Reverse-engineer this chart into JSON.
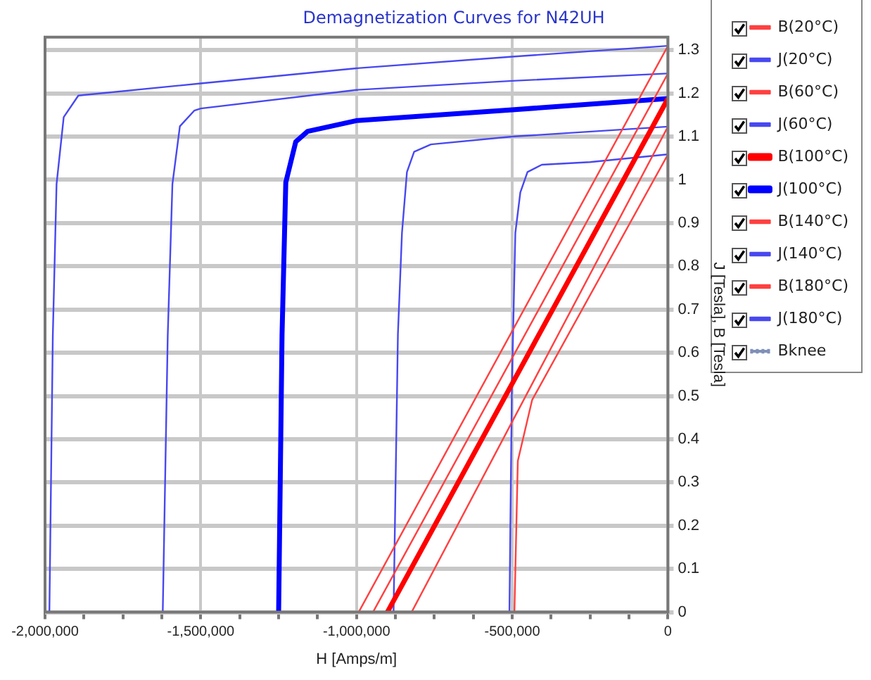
{
  "chart_data": {
    "type": "line",
    "title": "Demagnetization Curves for N42UH",
    "xlabel": "H [Amps/m]",
    "ylabel": "J [Tesla], B [Tesla]",
    "xlim": [
      -2000000,
      0
    ],
    "ylim": [
      0,
      1.33
    ],
    "xticks": [
      {
        "value": -2000000,
        "label": "-2,000,000"
      },
      {
        "value": -1875000,
        "label": null
      },
      {
        "value": -1750000,
        "label": null
      },
      {
        "value": -1625000,
        "label": null
      },
      {
        "value": -1500000,
        "label": "-1,500,000"
      },
      {
        "value": -1375000,
        "label": null
      },
      {
        "value": -1250000,
        "label": null
      },
      {
        "value": -1125000,
        "label": null
      },
      {
        "value": -1000000,
        "label": "-1,000,000"
      },
      {
        "value": -875000,
        "label": null
      },
      {
        "value": -750000,
        "label": null
      },
      {
        "value": -625000,
        "label": null
      },
      {
        "value": -500000,
        "label": "-500,000"
      },
      {
        "value": -375000,
        "label": null
      },
      {
        "value": -250000,
        "label": null
      },
      {
        "value": -125000,
        "label": null
      },
      {
        "value": 0,
        "label": "0"
      }
    ],
    "yticks": [
      0,
      0.1,
      0.2,
      0.3,
      0.4,
      0.5,
      0.6,
      0.7,
      0.8,
      0.9,
      1,
      1.1,
      1.2,
      1.3
    ],
    "grid": true,
    "legend": "right",
    "marker": "none",
    "series": [
      {
        "name": "B(20°C)",
        "color": "#ff4040",
        "x": [
          -993000,
          0
        ],
        "values": [
          0,
          1.31
        ]
      },
      {
        "name": "J(20°C)",
        "color": "#4848f0",
        "x": [
          -1986000,
          -1975000,
          -1963000,
          -1940000,
          -1893000,
          -1500000,
          -1000000,
          -500000,
          0
        ],
        "values": [
          0,
          0.64,
          0.99,
          1.145,
          1.195,
          1.223,
          1.258,
          1.285,
          1.31
        ]
      },
      {
        "name": "B(60°C)",
        "color": "#ff4040",
        "x": [
          -947000,
          0
        ],
        "values": [
          0,
          1.246
        ]
      },
      {
        "name": "J(60°C)",
        "color": "#4848f0",
        "x": [
          -1622000,
          -1606000,
          -1591000,
          -1567000,
          -1521000,
          -1500000,
          -1000000,
          -500000,
          0
        ],
        "values": [
          0,
          0.64,
          0.99,
          1.124,
          1.16,
          1.165,
          1.208,
          1.229,
          1.246
        ]
      },
      {
        "name": "B(100°C)",
        "color": "#ff0000",
        "x": [
          -901000,
          0
        ],
        "values": [
          0,
          1.188
        ]
      },
      {
        "name": "J(100°C)",
        "color": "#0000ff",
        "x": [
          -1250000,
          -1239000,
          -1227000,
          -1195000,
          -1157000,
          -1000000,
          -500000,
          0
        ],
        "values": [
          0,
          0.643,
          0.994,
          1.088,
          1.112,
          1.137,
          1.162,
          1.188
        ]
      },
      {
        "name": "B(140°C)",
        "color": "#ff4040",
        "x": [
          -823000,
          0
        ],
        "values": [
          0,
          1.123
        ]
      },
      {
        "name": "J(140°C)",
        "color": "#4848f0",
        "x": [
          -881000,
          -867000,
          -854000,
          -838000,
          -815000,
          -761000,
          -500000,
          0
        ],
        "values": [
          0,
          0.643,
          0.877,
          1.018,
          1.065,
          1.082,
          1.1,
          1.123
        ]
      },
      {
        "name": "B(180°C)",
        "color": "#ff4040",
        "x": [
          -493000,
          -482000,
          -436000,
          0
        ],
        "values": [
          0,
          0.35,
          0.491,
          1.059
        ]
      },
      {
        "name": "J(180°C)",
        "color": "#4848f0",
        "x": [
          -509000,
          -501000,
          -490000,
          -474000,
          -451000,
          -405000,
          -250000,
          0
        ],
        "values": [
          0,
          0.526,
          0.877,
          0.971,
          1.018,
          1.035,
          1.041,
          1.059
        ]
      },
      {
        "name": "Bknee",
        "color": "#8090b8",
        "line_style": "dotted",
        "x": [
          -2000000,
          0
        ],
        "values": [
          0,
          0
        ]
      }
    ]
  }
}
